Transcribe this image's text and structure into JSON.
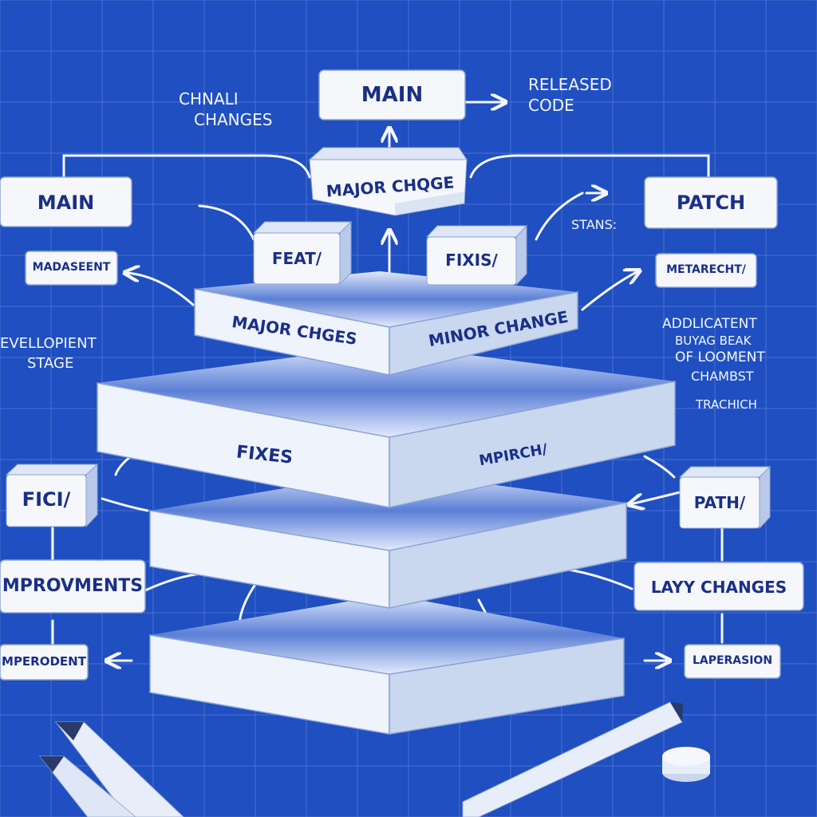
{
  "palette": {
    "background": "#1f4fc0",
    "grid": "#6f8fe0",
    "ink": "#1a2f86",
    "box_fill": "#f5f7fb",
    "slab_side": "#c9d7ef",
    "chalk": "#f3f6ff"
  },
  "top": {
    "main": "MAIN",
    "released": "RELEASED",
    "code": "CODE",
    "chnali": "CHNALI",
    "changes": "CHANGES"
  },
  "left": {
    "main": "MAIN",
    "madaseent": "MADASEENT",
    "development_line1": "EVELLOPIENT",
    "development_line2": "STAGE",
    "fici": "FICI/",
    "improvments": "MPROVMENTS",
    "imperodent": "MPERODENT"
  },
  "right": {
    "patch": "PATCH",
    "stans": "STANS:",
    "metarecht": "METARECHT/",
    "note_1": "ADDLICATENT",
    "note_2": "BUYAG BEAK",
    "note_3": "OF LOOMENT",
    "note_4": "CHAMBST",
    "note_5": "TRACHICH",
    "path": "PATH/",
    "layy_changes": "LAYY CHANGES",
    "laperasion": "LAPERASION"
  },
  "center": {
    "major_chqge": "MAJOR CHQGE",
    "feat": "FEAT/",
    "fixis": "FIXIS/",
    "major_chges": "MAJOR CHGES",
    "minor_change": "MINOR CHANGE",
    "fixes": "FIXES",
    "mpirch": "MPIRCH/"
  }
}
